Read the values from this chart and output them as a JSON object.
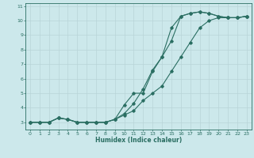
{
  "xlabel": "Humidex (Indice chaleur)",
  "ylabel": "",
  "bg_color": "#cce8eb",
  "line_color": "#2a6e62",
  "grid_color": "#b8d4d8",
  "xlim": [
    -0.5,
    23.5
  ],
  "ylim": [
    2.5,
    11.2
  ],
  "xticks": [
    0,
    1,
    2,
    3,
    4,
    5,
    6,
    7,
    8,
    9,
    10,
    11,
    12,
    13,
    14,
    15,
    16,
    17,
    18,
    19,
    20,
    21,
    22,
    23
  ],
  "yticks": [
    3,
    4,
    5,
    6,
    7,
    8,
    9,
    10,
    11
  ],
  "line1_x": [
    0,
    1,
    2,
    3,
    4,
    5,
    6,
    7,
    8,
    9,
    10,
    11,
    12,
    13,
    14,
    15,
    16,
    17,
    18,
    19,
    20,
    21,
    22,
    23
  ],
  "line1_y": [
    3,
    3,
    3,
    3.3,
    3.2,
    3,
    3,
    3,
    3,
    3.2,
    4.2,
    5.0,
    5.0,
    6.5,
    7.5,
    8.6,
    10.3,
    10.5,
    10.6,
    10.5,
    10.3,
    10.2,
    10.2,
    10.3
  ],
  "line2_x": [
    0,
    1,
    2,
    3,
    4,
    5,
    6,
    7,
    8,
    9,
    10,
    11,
    12,
    13,
    14,
    15,
    16,
    17,
    18,
    19,
    20,
    21,
    22,
    23
  ],
  "line2_y": [
    3,
    3,
    3,
    3.3,
    3.2,
    3,
    3,
    3,
    3,
    3.2,
    3.6,
    4.3,
    5.3,
    6.6,
    7.5,
    9.5,
    10.3,
    10.5,
    10.6,
    10.5,
    10.3,
    10.2,
    10.2,
    10.3
  ],
  "line3_x": [
    0,
    1,
    2,
    3,
    4,
    5,
    6,
    7,
    8,
    9,
    10,
    11,
    12,
    13,
    14,
    15,
    16,
    17,
    18,
    19,
    20,
    21,
    22,
    23
  ],
  "line3_y": [
    3,
    3,
    3,
    3.3,
    3.2,
    3,
    3,
    3,
    3,
    3.2,
    3.5,
    3.8,
    4.5,
    5.0,
    5.5,
    6.5,
    7.5,
    8.5,
    9.5,
    10.0,
    10.2,
    10.2,
    10.2,
    10.3
  ]
}
